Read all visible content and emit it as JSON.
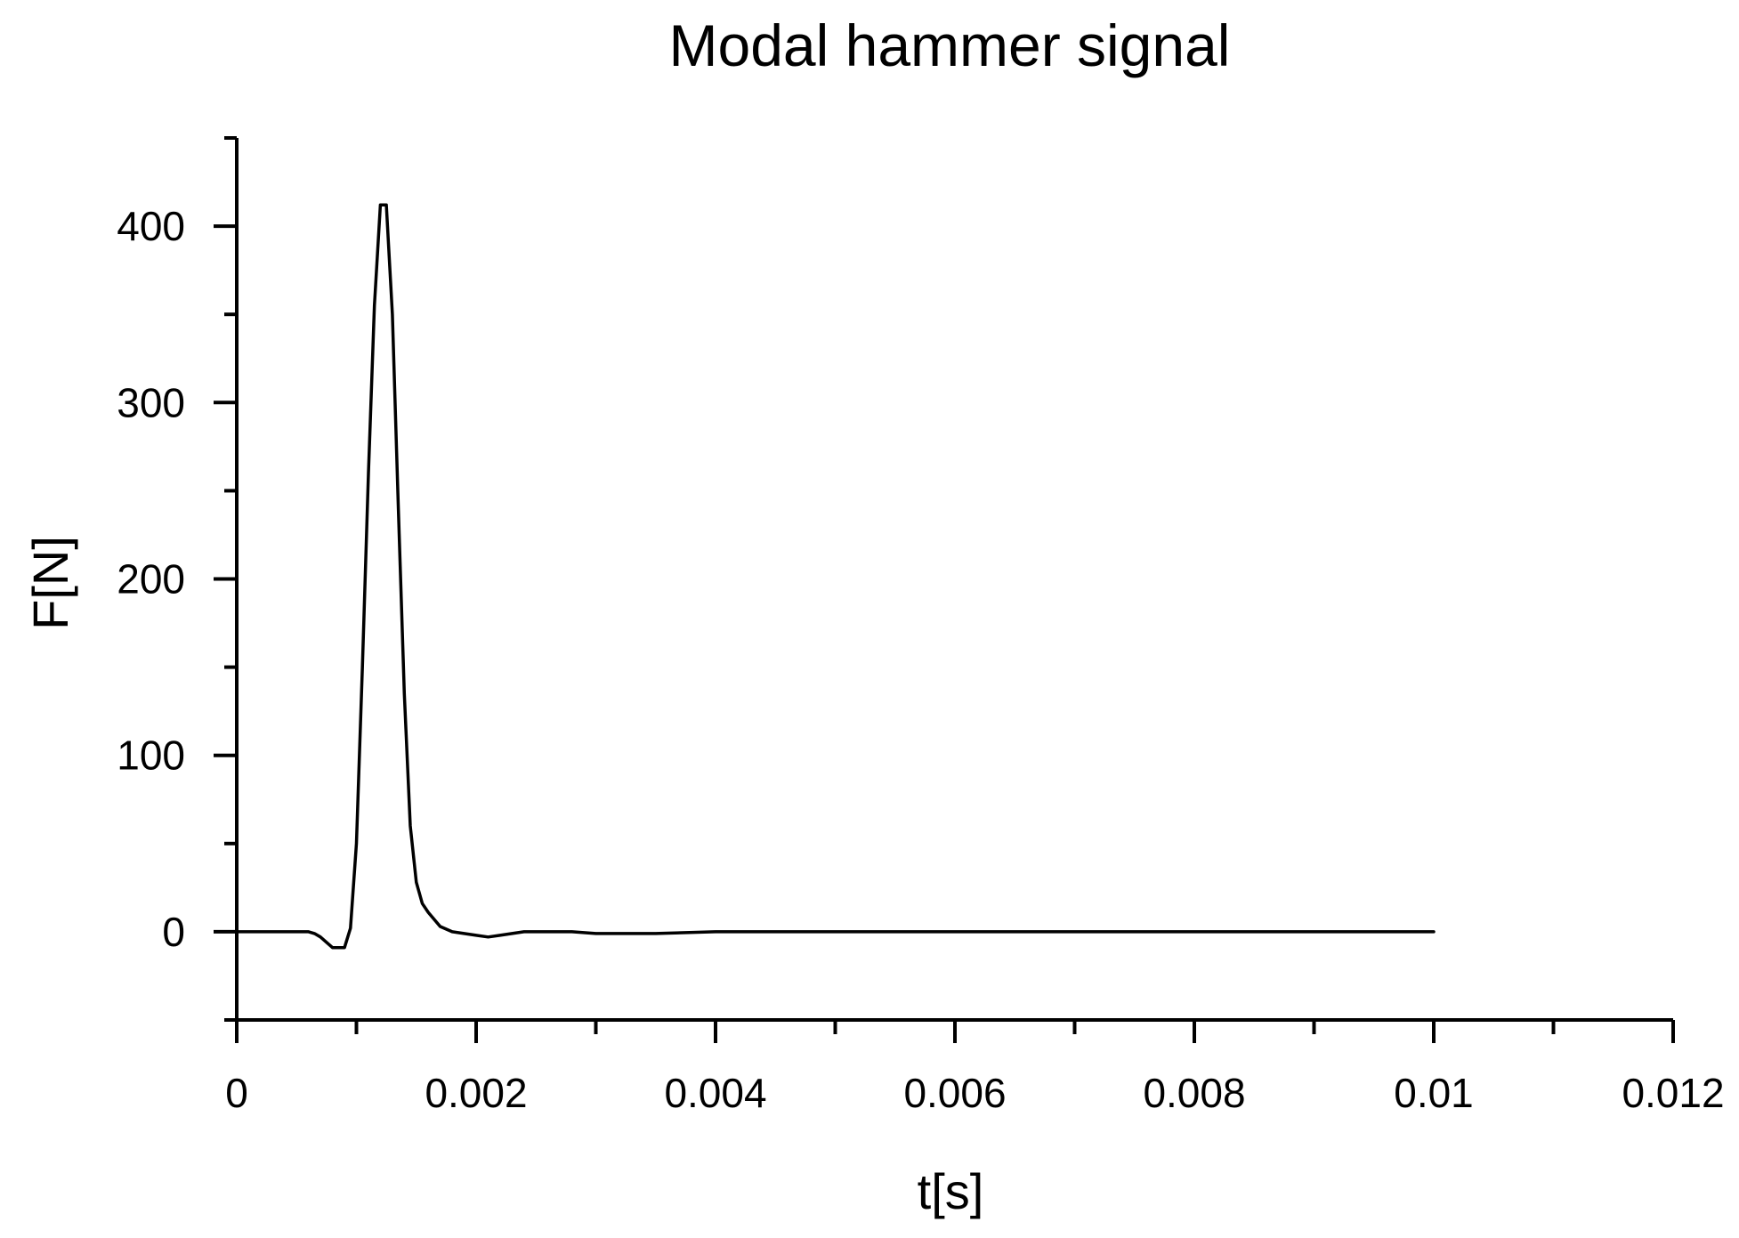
{
  "chart_data": {
    "type": "line",
    "title": "Modal hammer signal",
    "xlabel": "t[s]",
    "ylabel": "F[N]",
    "xlim": [
      0,
      0.012
    ],
    "ylim": [
      -50,
      450
    ],
    "x_ticks": [
      0,
      0.002,
      0.004,
      0.006,
      0.008,
      0.01,
      0.012
    ],
    "x_tick_labels": [
      "0",
      "0.002",
      "0.004",
      "0.006",
      "0.008",
      "0.01",
      "0.012"
    ],
    "x_minor_step": 0.001,
    "y_ticks": [
      0,
      100,
      200,
      300,
      400
    ],
    "y_tick_labels": [
      "0",
      "100",
      "200",
      "300",
      "400"
    ],
    "y_minor_step": 50,
    "grid": false,
    "line_color": "#000000",
    "series": [
      {
        "x": [
          0,
          0.0006,
          0.00065,
          0.0007,
          0.00075,
          0.0008,
          0.00085,
          0.0009,
          0.00095,
          0.001,
          0.00105,
          0.0011,
          0.00115,
          0.0012,
          0.00125,
          0.0013,
          0.00135,
          0.0014,
          0.00145,
          0.0015,
          0.00155,
          0.0016,
          0.0017,
          0.0018,
          0.0019,
          0.002,
          0.0021,
          0.0022,
          0.0024,
          0.0026,
          0.0028,
          0.003,
          0.0032,
          0.0035,
          0.004,
          0.005,
          0.006,
          0.007,
          0.008,
          0.009,
          0.01
        ],
        "y": [
          0,
          0,
          -1,
          -3,
          -6,
          -9,
          -9,
          -9,
          2,
          50,
          150,
          260,
          355,
          412,
          412,
          350,
          240,
          135,
          60,
          28,
          16,
          11,
          3,
          0,
          -1,
          -2,
          -3,
          -2,
          0,
          0,
          0,
          -1,
          -1,
          -1,
          0,
          0,
          0,
          0,
          0,
          0,
          0
        ]
      }
    ]
  }
}
